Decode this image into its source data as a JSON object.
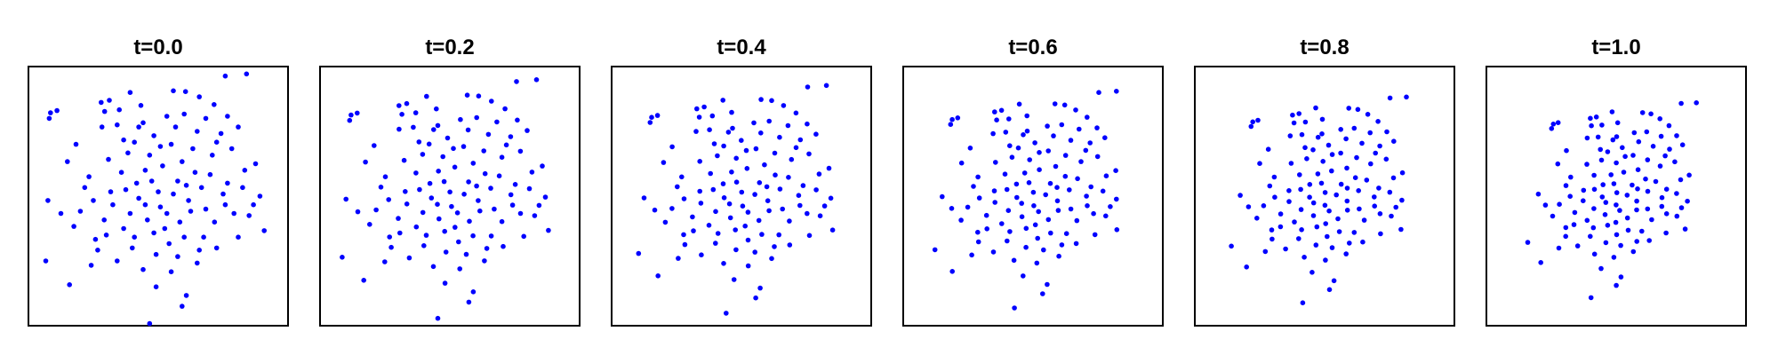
{
  "chart_data": {
    "type": "scatter",
    "point_color": "#0000ff",
    "axes_visible": false,
    "grid": false,
    "legend": "none",
    "xlim": [
      -3,
      3
    ],
    "ylim": [
      -3,
      3
    ],
    "panels": [
      {
        "title": "t=0.0",
        "t": 0.0
      },
      {
        "title": "t=0.2",
        "t": 0.2
      },
      {
        "title": "t=0.4",
        "t": 0.4
      },
      {
        "title": "t=0.6",
        "t": 0.6
      },
      {
        "title": "t=0.8",
        "t": 0.8
      },
      {
        "title": "t=1.0",
        "t": 1.0
      }
    ],
    "points": [
      [
        -1.32,
        2.17
      ],
      [
        -1.13,
        2.22
      ],
      [
        -1.24,
        1.96
      ],
      [
        -2.49,
        1.93
      ],
      [
        -2.52,
        1.8
      ],
      [
        -2.34,
        1.98
      ],
      [
        0.35,
        2.44
      ],
      [
        0.63,
        2.42
      ],
      [
        1.55,
        2.78
      ],
      [
        2.04,
        2.83
      ],
      [
        1.29,
        2.12
      ],
      [
        1.6,
        1.85
      ],
      [
        -0.8,
        1.3
      ],
      [
        -0.45,
        1.6
      ],
      [
        -0.1,
        1.4
      ],
      [
        0.3,
        1.2
      ],
      [
        0.9,
        1.5
      ],
      [
        1.25,
        0.95
      ],
      [
        1.7,
        1.1
      ],
      [
        2.0,
        0.6
      ],
      [
        2.35,
        0.0
      ],
      [
        2.1,
        -0.45
      ],
      [
        2.45,
        -0.8
      ],
      [
        -2.55,
        -0.1
      ],
      [
        -2.6,
        -1.5
      ],
      [
        -2.05,
        -2.05
      ],
      [
        -1.45,
        -1.0
      ],
      [
        -1.6,
        0.45
      ],
      [
        -0.85,
        0.55
      ],
      [
        -0.5,
        0.3
      ],
      [
        -0.3,
        -0.2
      ],
      [
        0.0,
        0.1
      ],
      [
        0.2,
        -0.4
      ],
      [
        0.45,
        0.35
      ],
      [
        0.7,
        -0.1
      ],
      [
        1.0,
        0.2
      ],
      [
        1.3,
        -0.6
      ],
      [
        1.55,
        -0.2
      ],
      [
        1.05,
        -0.95
      ],
      [
        0.6,
        -0.95
      ],
      [
        -0.05,
        -1.35
      ],
      [
        -0.55,
        -0.95
      ],
      [
        -0.95,
        -1.5
      ],
      [
        -1.25,
        -0.55
      ],
      [
        0.3,
        -1.75
      ],
      [
        0.65,
        -2.3
      ],
      [
        0.55,
        -2.55
      ],
      [
        -0.2,
        -2.95
      ],
      [
        -0.05,
        -2.1
      ],
      [
        0.9,
        -1.55
      ],
      [
        1.35,
        -1.2
      ],
      [
        1.6,
        0.3
      ],
      [
        -0.7,
        1.0
      ],
      [
        -0.2,
        0.95
      ],
      [
        0.1,
        0.7
      ],
      [
        0.55,
        0.8
      ],
      [
        -1.1,
        0.1
      ],
      [
        -1.8,
        -0.35
      ],
      [
        -0.65,
        -0.4
      ],
      [
        0.15,
        -0.75
      ],
      [
        -1.3,
        1.6
      ],
      [
        -0.9,
        2.0
      ],
      [
        -0.4,
        2.1
      ],
      [
        0.6,
        1.9
      ],
      [
        1.1,
        1.8
      ],
      [
        -2.1,
        0.8
      ],
      [
        -1.95,
        -0.7
      ],
      [
        -1.55,
        -1.6
      ],
      [
        -0.35,
        -1.7
      ],
      [
        1.85,
        -0.95
      ],
      [
        2.25,
        0.75
      ],
      [
        1.45,
        1.45
      ],
      [
        -1.05,
        -0.2
      ],
      [
        -0.15,
        0.35
      ],
      [
        0.35,
        0.05
      ],
      [
        0.85,
        0.55
      ],
      [
        -0.8,
        -0.75
      ],
      [
        0.25,
        -1.1
      ],
      [
        -1.7,
        0.2
      ],
      [
        -0.55,
        1.25
      ],
      [
        0.05,
        1.15
      ],
      [
        1.2,
        0.5
      ],
      [
        0.75,
        -0.35
      ],
      [
        -0.25,
        -0.55
      ],
      [
        -1.4,
        -1.25
      ],
      [
        -0.6,
        -1.2
      ],
      [
        0.45,
        -1.4
      ],
      [
        1.75,
        -0.4
      ],
      [
        1.95,
        0.2
      ],
      [
        -2.25,
        -0.4
      ],
      [
        -1.15,
        0.85
      ],
      [
        -0.35,
        1.7
      ],
      [
        0.4,
        1.6
      ],
      [
        0.8,
        1.1
      ],
      [
        1.5,
        0.05
      ],
      [
        -0.75,
        0.15
      ],
      [
        0.5,
        -0.6
      ],
      [
        1.1,
        -0.3
      ],
      [
        -0.45,
        -0.05
      ],
      [
        0.05,
        -0.25
      ],
      [
        -1.9,
        1.2
      ],
      [
        1.85,
        1.6
      ],
      [
        -1.2,
        -0.9
      ],
      [
        0.95,
        -1.25
      ],
      [
        0.2,
        1.85
      ],
      [
        -0.95,
        1.65
      ],
      [
        -0.1,
        -0.85
      ],
      [
        1.35,
        1.25
      ],
      [
        -0.3,
        0.6
      ],
      [
        0.65,
        0.25
      ],
      [
        -1.5,
        -0.1
      ],
      [
        2.2,
        -0.2
      ],
      [
        -0.65,
        2.4
      ],
      [
        0.95,
        2.3
      ]
    ]
  }
}
